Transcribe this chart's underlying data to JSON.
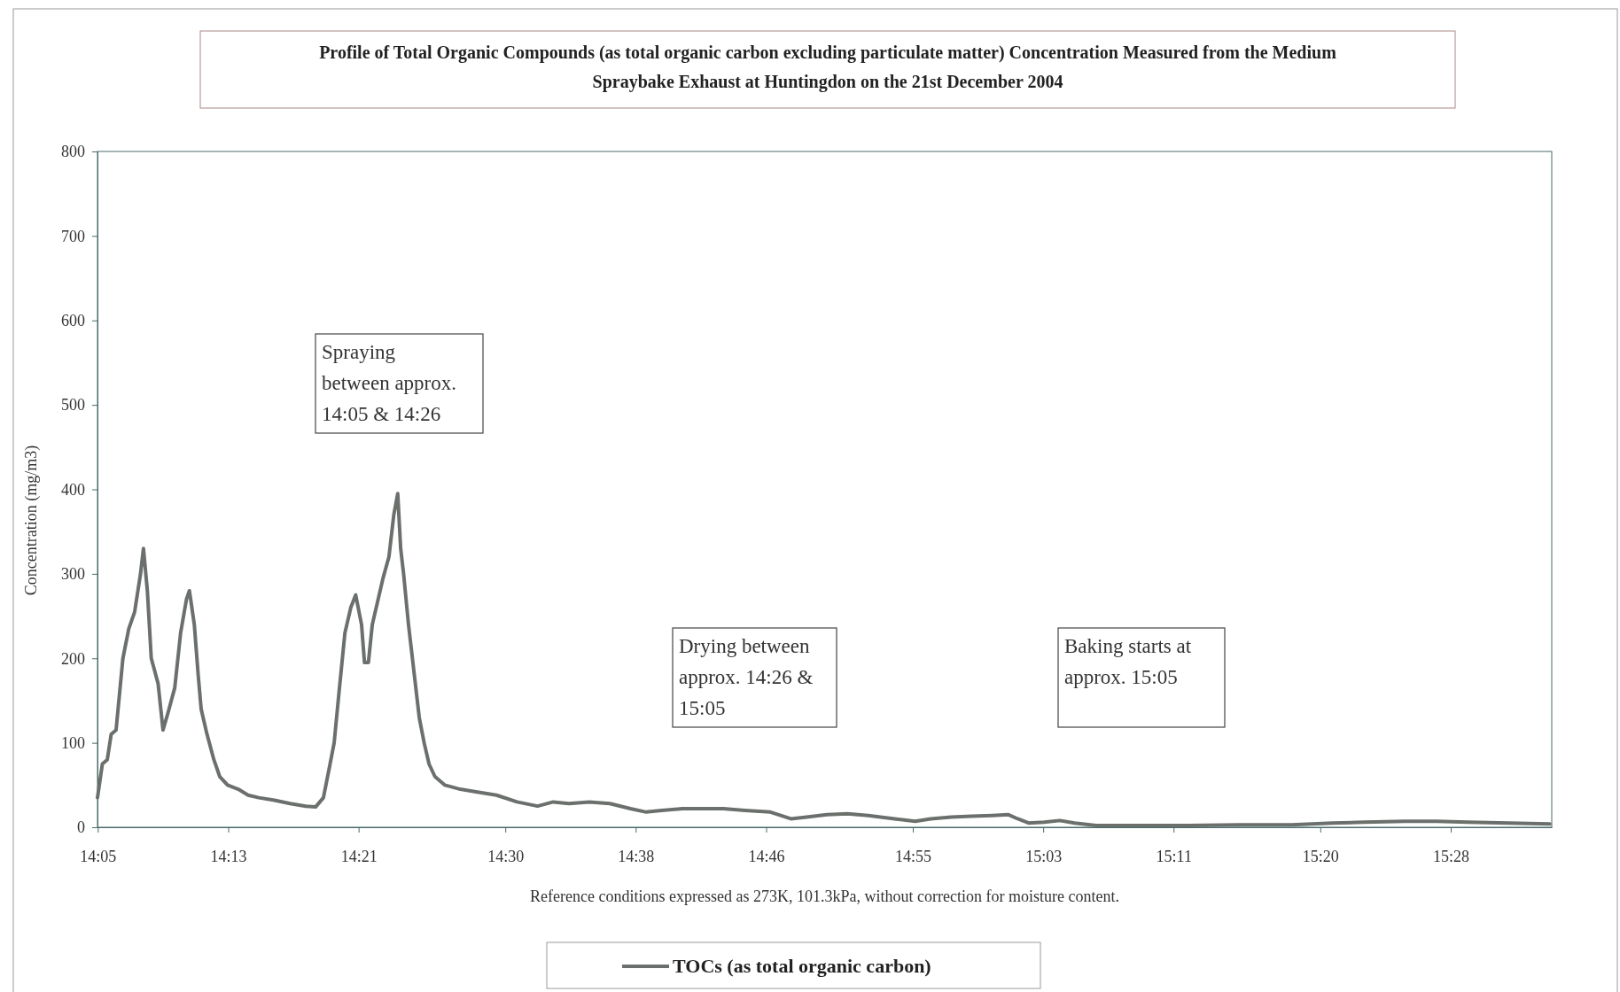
{
  "chart_data": {
    "type": "line",
    "title": "Profile of Total Organic Compounds (as total organic carbon excluding particulate matter) Concentration Measured from the Medium\nSpraybake Exhaust at Huntingdon on the 21st December 2004",
    "xlabel": "Reference conditions expressed as 273K, 101.3kPa, without correction for moisture content.",
    "ylabel": "Concentration (mg/m3)",
    "annotations": [
      "Spraying\nbetween approx.\n14:05 & 14:26",
      "Drying between\napprox. 14:26 &\n15:05",
      "Baking starts at\napprox.  15:05"
    ],
    "xlim": [
      14.083,
      15.57
    ],
    "xticks": [
      {
        "value": 14.0833,
        "label": "14:05"
      },
      {
        "value": 14.2167,
        "label": "14:13"
      },
      {
        "value": 14.35,
        "label": "14:21"
      },
      {
        "value": 14.5,
        "label": "14:30"
      },
      {
        "value": 14.6333,
        "label": "14:38"
      },
      {
        "value": 14.7667,
        "label": "14:46"
      },
      {
        "value": 14.9167,
        "label": "14:55"
      },
      {
        "value": 15.05,
        "label": "15:03"
      },
      {
        "value": 15.1833,
        "label": "15:11"
      },
      {
        "value": 15.3333,
        "label": "15:20"
      },
      {
        "value": 15.4667,
        "label": "15:28"
      }
    ],
    "ylim": [
      0,
      800
    ],
    "yticks": [
      0,
      100,
      200,
      300,
      400,
      500,
      600,
      700,
      800
    ],
    "grid": false,
    "legend": "bottom",
    "marker": "none",
    "line_style": "solid",
    "x": [
      14.083,
      14.088,
      14.093,
      14.097,
      14.102,
      14.109,
      14.115,
      14.121,
      14.127,
      14.13,
      14.134,
      14.138,
      14.145,
      14.15,
      14.155,
      14.162,
      14.168,
      14.174,
      14.177,
      14.182,
      14.186,
      14.189,
      14.195,
      14.202,
      14.208,
      14.216,
      14.227,
      14.237,
      14.248,
      14.264,
      14.28,
      14.296,
      14.306,
      14.314,
      14.32,
      14.325,
      14.33,
      14.336,
      14.342,
      14.347,
      14.353,
      14.356,
      14.36,
      14.364,
      14.37,
      14.375,
      14.381,
      14.386,
      14.39,
      14.393,
      14.396,
      14.401,
      14.407,
      14.412,
      14.417,
      14.422,
      14.428,
      14.438,
      14.454,
      14.47,
      14.491,
      14.512,
      14.533,
      14.549,
      14.565,
      14.586,
      14.607,
      14.628,
      14.644,
      14.66,
      14.681,
      14.702,
      14.723,
      14.745,
      14.771,
      14.792,
      14.808,
      14.829,
      14.85,
      14.871,
      14.898,
      14.919,
      14.935,
      14.956,
      14.977,
      14.998,
      15.014,
      15.024,
      15.035,
      15.051,
      15.067,
      15.082,
      15.104,
      15.146,
      15.199,
      15.251,
      15.304,
      15.346,
      15.378,
      15.42,
      15.452,
      15.484,
      15.526,
      15.568
    ],
    "series": [
      {
        "name": "TOCs (as total organic carbon)",
        "color": "#6b706c",
        "values": [
          35,
          75,
          80,
          110,
          115,
          200,
          235,
          255,
          300,
          330,
          280,
          200,
          170,
          115,
          135,
          165,
          230,
          270,
          280,
          240,
          180,
          140,
          110,
          80,
          60,
          50,
          45,
          38,
          35,
          32,
          28,
          25,
          24,
          35,
          70,
          100,
          160,
          230,
          260,
          275,
          240,
          195,
          195,
          240,
          270,
          295,
          320,
          370,
          395,
          330,
          300,
          240,
          180,
          130,
          100,
          75,
          60,
          50,
          45,
          42,
          38,
          30,
          25,
          30,
          28,
          30,
          28,
          22,
          18,
          20,
          22,
          22,
          22,
          20,
          18,
          10,
          12,
          15,
          16,
          14,
          10,
          7,
          10,
          12,
          13,
          14,
          15,
          10,
          5,
          6,
          8,
          5,
          2,
          2,
          2,
          3,
          3,
          5,
          6,
          7,
          7,
          6,
          5,
          4
        ]
      }
    ]
  }
}
